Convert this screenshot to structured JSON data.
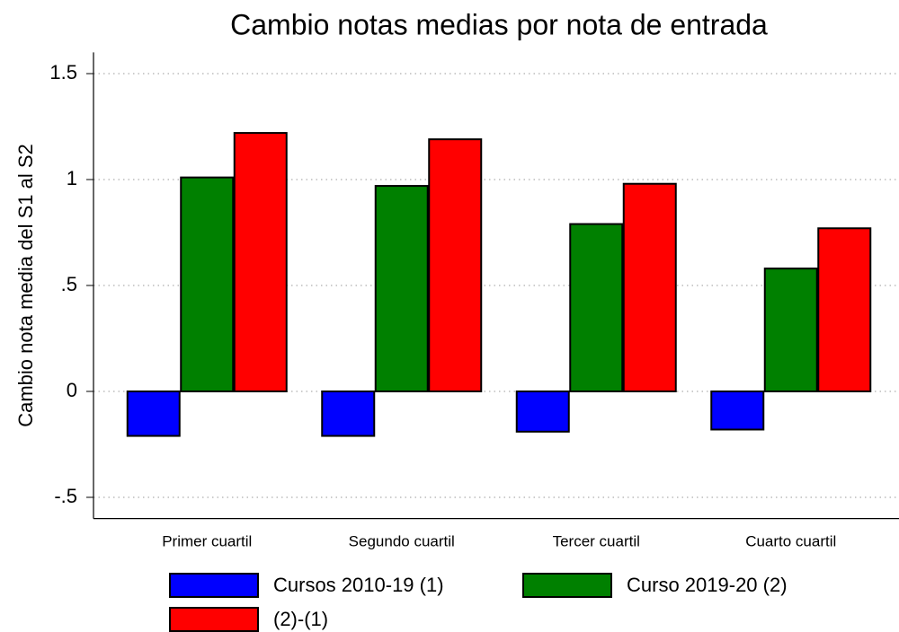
{
  "chart_data": {
    "type": "bar",
    "title": "Cambio notas medias por nota de entrada",
    "y_label": "Cambio nota media del S1 al S2",
    "categories": [
      "Primer cuartil",
      "Segundo cuartil",
      "Tercer cuartil",
      "Cuarto cuartil"
    ],
    "series": [
      {
        "name": "Cursos 2010-19 (1)",
        "color": "#0000ff",
        "values": [
          -0.21,
          -0.21,
          -0.19,
          -0.18
        ]
      },
      {
        "name": "Curso 2019-20 (2)",
        "color": "#008000",
        "values": [
          1.01,
          0.97,
          0.79,
          0.58
        ]
      },
      {
        "name": "(2)-(1)",
        "color": "#ff0000",
        "values": [
          1.22,
          1.19,
          0.98,
          0.77
        ]
      }
    ],
    "ylim": [
      -0.6,
      1.6
    ],
    "yticks": [
      {
        "value": -0.5,
        "label": "-.5"
      },
      0,
      {
        "value": 0.5,
        "label": ".5"
      },
      1,
      1.5
    ],
    "grid": true
  }
}
